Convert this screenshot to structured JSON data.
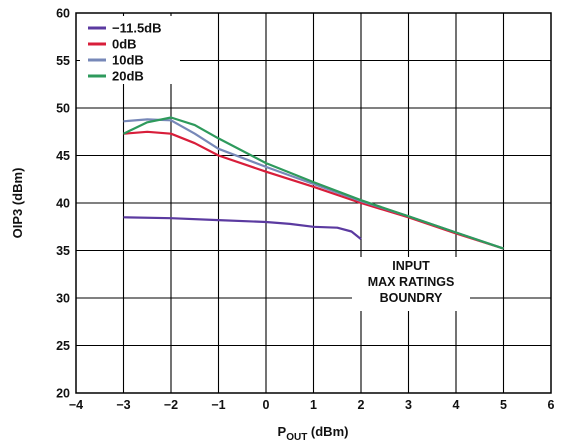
{
  "chart_data": {
    "type": "line",
    "xlabel_main": "P",
    "xlabel_sub": "OUT",
    "xlabel_unit": " (dBm)",
    "ylabel": "OIP3 (dBm)",
    "xlim": [
      -4,
      6
    ],
    "ylim": [
      20,
      60
    ],
    "x_ticks": [
      "−4",
      "−3",
      "−2",
      "−1",
      "0",
      "1",
      "2",
      "3",
      "4",
      "5",
      "6"
    ],
    "y_ticks": [
      "20",
      "25",
      "30",
      "35",
      "40",
      "45",
      "50",
      "55",
      "60"
    ],
    "grid": true,
    "legend_position": "top-left",
    "series": [
      {
        "name": "−11.5dB",
        "color": "#5b3aa0",
        "x": [
          -3,
          -2,
          -1,
          0,
          0.5,
          1,
          1.5,
          1.8,
          2
        ],
        "y": [
          38.5,
          38.4,
          38.2,
          38.0,
          37.8,
          37.5,
          37.4,
          37.0,
          36.2
        ]
      },
      {
        "name": "0dB",
        "color": "#d81e3a",
        "x": [
          -3,
          -2.5,
          -2,
          -1.5,
          -1,
          0,
          1,
          2,
          3,
          4,
          5
        ],
        "y": [
          47.3,
          47.5,
          47.3,
          46.3,
          45.0,
          43.3,
          41.7,
          40.0,
          38.5,
          36.8,
          35.2
        ]
      },
      {
        "name": "10dB",
        "color": "#7788b8",
        "x": [
          -3,
          -2.5,
          -2,
          -1.5,
          -1,
          0,
          1,
          2,
          3,
          4,
          5
        ],
        "y": [
          48.6,
          48.8,
          48.7,
          47.3,
          45.7,
          43.8,
          42.0,
          40.2,
          38.6,
          36.9,
          35.2
        ]
      },
      {
        "name": "20dB",
        "color": "#2e9a5c",
        "x": [
          -3,
          -2.5,
          -2,
          -1.5,
          -1,
          0,
          1,
          2,
          3,
          4,
          5
        ],
        "y": [
          47.3,
          48.5,
          49.0,
          48.2,
          46.8,
          44.2,
          42.2,
          40.3,
          38.6,
          36.9,
          35.2
        ]
      }
    ],
    "annotation": [
      "INPUT",
      "MAX RATINGS",
      "BOUNDRY"
    ]
  }
}
